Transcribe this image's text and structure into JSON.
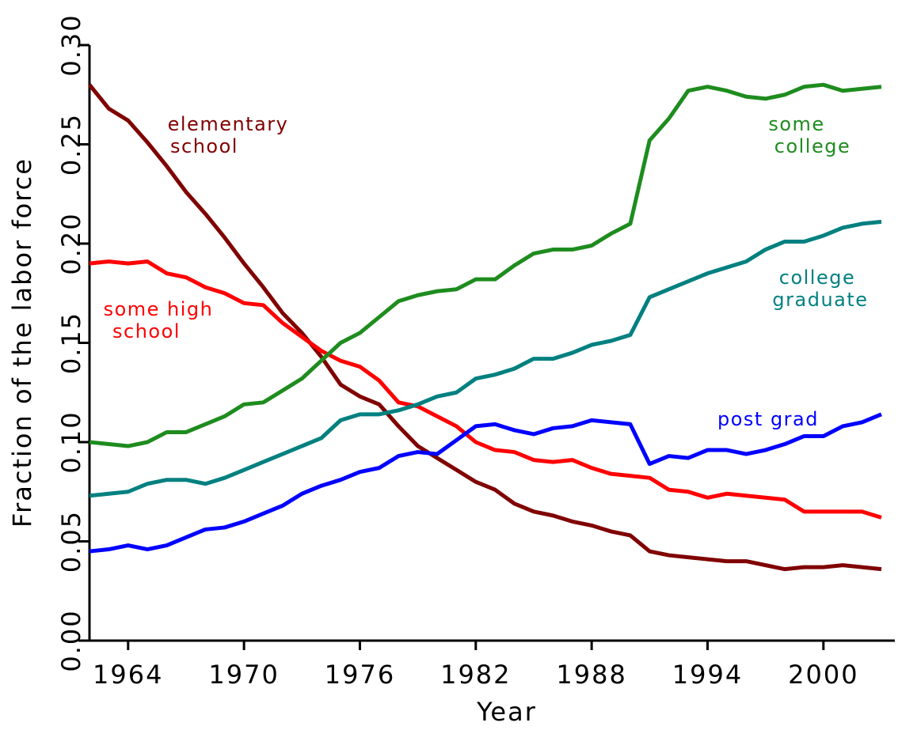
{
  "chart_data": {
    "type": "line",
    "xlabel": "Year",
    "ylabel": "Fraction of the labor force",
    "x": [
      1962,
      1963,
      1964,
      1965,
      1966,
      1967,
      1968,
      1969,
      1970,
      1971,
      1972,
      1973,
      1974,
      1975,
      1976,
      1977,
      1978,
      1979,
      1980,
      1981,
      1982,
      1983,
      1984,
      1985,
      1986,
      1987,
      1988,
      1989,
      1990,
      1991,
      1992,
      1993,
      1994,
      1995,
      1996,
      1997,
      1998,
      1999,
      2000,
      2001,
      2002,
      2003
    ],
    "xlim": [
      1962,
      2003
    ],
    "xticks": [
      1964,
      1970,
      1976,
      1982,
      1988,
      1994,
      2000
    ],
    "ylim": [
      0,
      0.3
    ],
    "yticks": [
      {
        "value": 0,
        "label": "0.00"
      },
      0.05,
      {
        "value": 0.1,
        "label": "0.10"
      },
      0.15,
      {
        "value": 0.2,
        "label": "0.20"
      },
      0.25,
      {
        "value": 0.3,
        "label": "0.30"
      }
    ],
    "series": [
      {
        "label": [
          "elementary",
          "school"
        ],
        "color": "#800000",
        "values": [
          0.28,
          0.268,
          0.262,
          0.251,
          0.239,
          0.226,
          0.215,
          0.203,
          0.19,
          0.178,
          0.165,
          0.155,
          0.143,
          0.129,
          0.123,
          0.119,
          0.108,
          0.098,
          0.092,
          0.086,
          0.08,
          0.076,
          0.069,
          0.065,
          0.063,
          0.06,
          0.058,
          0.055,
          0.053,
          0.045,
          0.043,
          0.042,
          0.041,
          0.04,
          0.04,
          0.038,
          0.036,
          0.037,
          0.037,
          0.038,
          0.037,
          0.036
        ]
      },
      {
        "label": [
          "some high",
          "school"
        ],
        "color": "#ff0000",
        "values": [
          0.19,
          0.191,
          0.19,
          0.191,
          0.185,
          0.183,
          0.178,
          0.175,
          0.17,
          0.169,
          0.16,
          0.153,
          0.146,
          0.141,
          0.138,
          0.131,
          0.12,
          0.118,
          0.113,
          0.108,
          0.1,
          0.096,
          0.095,
          0.091,
          0.09,
          0.091,
          0.087,
          0.084,
          0.083,
          0.082,
          0.076,
          0.075,
          0.072,
          0.074,
          0.073,
          0.072,
          0.071,
          0.065,
          0.065,
          0.065,
          0.065,
          0.062
        ]
      },
      {
        "label": [
          "some",
          "college"
        ],
        "color": "#1e8c1e",
        "values": [
          0.1,
          0.099,
          0.098,
          0.1,
          0.105,
          0.105,
          0.109,
          0.113,
          0.119,
          0.12,
          0.126,
          0.132,
          0.141,
          0.15,
          0.155,
          0.163,
          0.171,
          0.174,
          0.176,
          0.177,
          0.182,
          0.182,
          0.189,
          0.195,
          0.197,
          0.197,
          0.199,
          0.205,
          0.21,
          0.252,
          0.263,
          0.277,
          0.279,
          0.277,
          0.274,
          0.273,
          0.275,
          0.279,
          0.28,
          0.277,
          0.278,
          0.279
        ]
      },
      {
        "label": [
          "college",
          "graduate"
        ],
        "color": "#008080",
        "values": [
          0.073,
          0.074,
          0.075,
          0.079,
          0.081,
          0.081,
          0.079,
          0.082,
          0.086,
          0.09,
          0.094,
          0.098,
          0.102,
          0.111,
          0.114,
          0.114,
          0.116,
          0.119,
          0.123,
          0.125,
          0.132,
          0.134,
          0.137,
          0.142,
          0.142,
          0.145,
          0.149,
          0.151,
          0.154,
          0.173,
          0.177,
          0.181,
          0.185,
          0.188,
          0.191,
          0.197,
          0.201,
          0.201,
          0.204,
          0.208,
          0.21,
          0.211
        ]
      },
      {
        "label": [
          "post grad"
        ],
        "color": "#0000ff",
        "values": [
          0.045,
          0.046,
          0.048,
          0.046,
          0.048,
          0.052,
          0.056,
          0.057,
          0.06,
          0.064,
          0.068,
          0.074,
          0.078,
          0.081,
          0.085,
          0.087,
          0.093,
          0.095,
          0.094,
          0.101,
          0.108,
          0.109,
          0.106,
          0.104,
          0.107,
          0.108,
          0.111,
          0.11,
          0.109,
          0.089,
          0.093,
          0.092,
          0.096,
          0.096,
          0.094,
          0.096,
          0.099,
          0.103,
          0.103,
          0.108,
          0.11,
          0.114
        ]
      }
    ]
  }
}
